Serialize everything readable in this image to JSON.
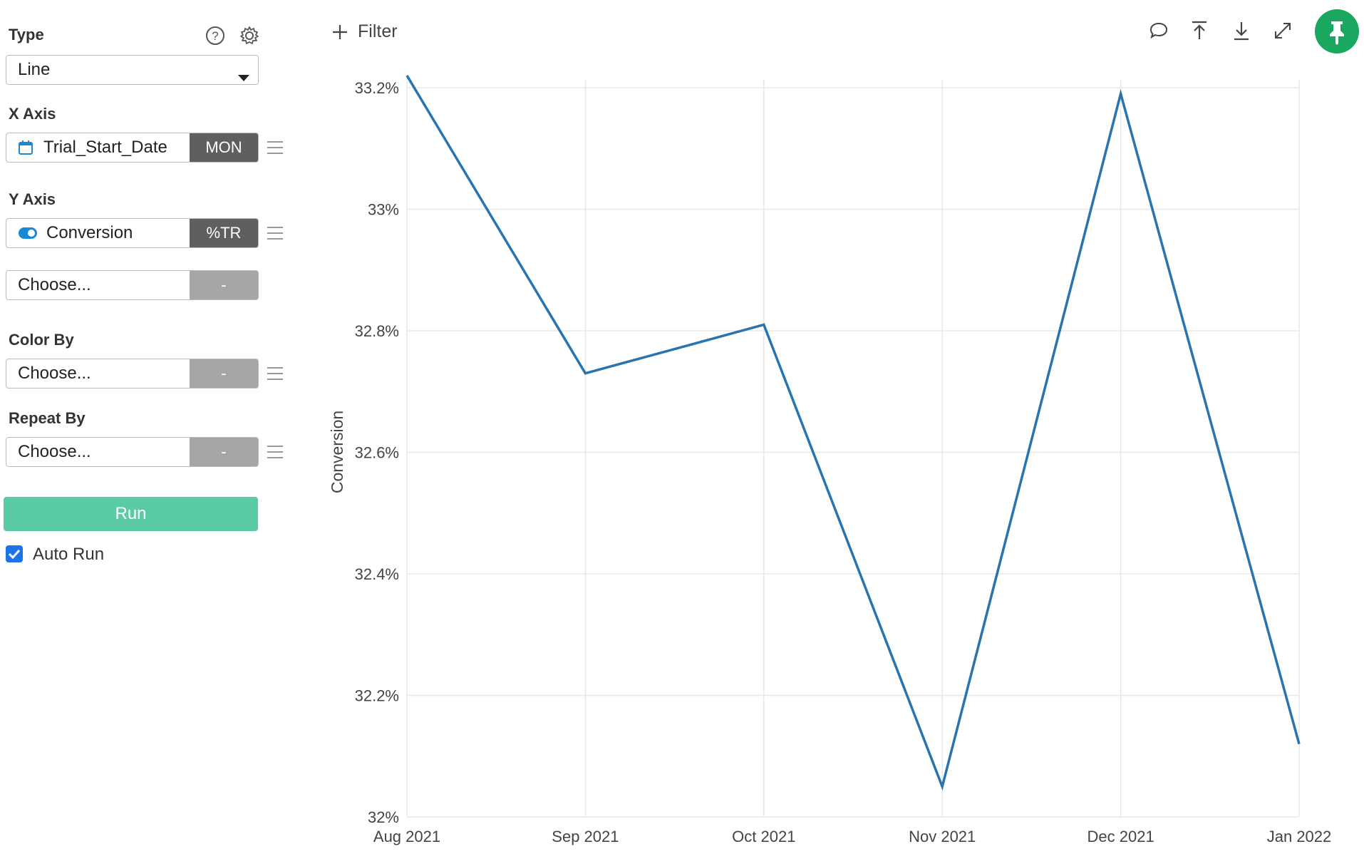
{
  "sidebar": {
    "type_label": "Type",
    "type_value": "Line",
    "x_axis_label": "X Axis",
    "x_field": {
      "name": "Trial_Start_Date",
      "tag": "MON"
    },
    "y_axis_label": "Y Axis",
    "y_field": {
      "name": "Conversion",
      "tag": "%TR"
    },
    "y_field2": {
      "placeholder": "Choose...",
      "tag": "-"
    },
    "color_by_label": "Color By",
    "color_by": {
      "placeholder": "Choose...",
      "tag": "-"
    },
    "repeat_by_label": "Repeat By",
    "repeat_by": {
      "placeholder": "Choose...",
      "tag": "-"
    },
    "run_label": "Run",
    "auto_run_label": "Auto Run",
    "auto_run_checked": true
  },
  "toolbar": {
    "filter_label": "Filter",
    "icons": [
      "comment-icon",
      "upload-icon",
      "download-icon",
      "expand-icon",
      "pin-icon"
    ],
    "pin_color": "#1aa760"
  },
  "chart_data": {
    "type": "line",
    "ylabel": "Conversion",
    "xlabel": "",
    "x": [
      "Aug 2021",
      "Sep 2021",
      "Oct 2021",
      "Nov 2021",
      "Dec 2021",
      "Jan 2022"
    ],
    "series": [
      {
        "values": [
          33.22,
          32.73,
          32.81,
          32.05,
          33.19,
          32.12
        ]
      }
    ],
    "yticks": [
      "32%",
      "32.2%",
      "32.4%",
      "32.6%",
      "32.8%",
      "33%",
      "33.2%"
    ],
    "ylim": [
      32.0,
      33.2
    ],
    "grid": true,
    "line_color": "#2774b0"
  }
}
